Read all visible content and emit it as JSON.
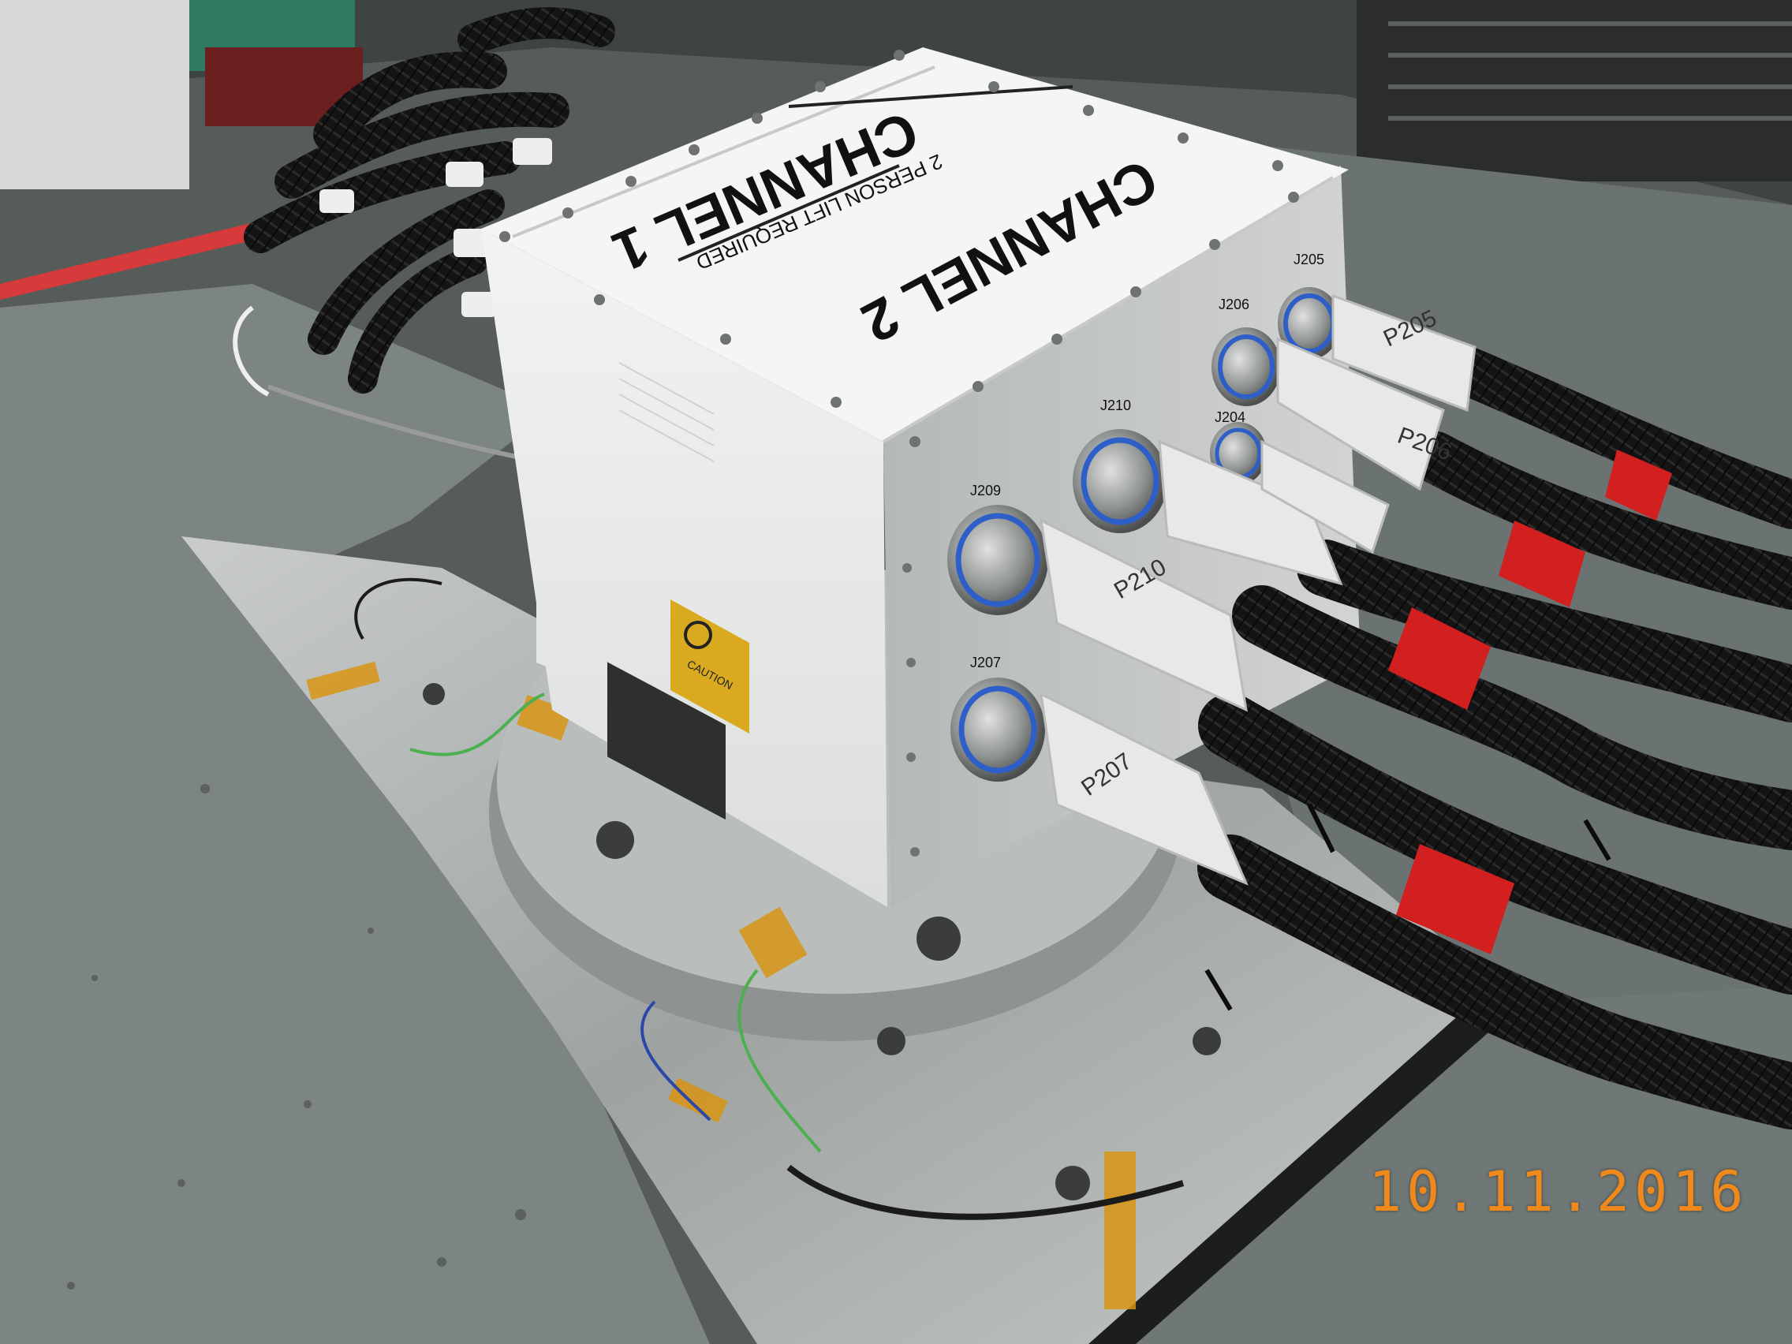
{
  "photo": {
    "date_stamp": "10.11.2016",
    "box": {
      "top_label_1": "CHANNEL 1",
      "top_label_2": "CHANNEL 2",
      "lift_notice": "2 PERSON LIFT REQUIRED",
      "caution": "CAUTION"
    },
    "connectors": [
      {
        "id": "J205"
      },
      {
        "id": "J206"
      },
      {
        "id": "J210"
      },
      {
        "id": "J204"
      },
      {
        "id": "J209"
      },
      {
        "id": "J207"
      }
    ],
    "plugs": [
      {
        "id": "P205"
      },
      {
        "id": "P206"
      },
      {
        "id": "P210"
      },
      {
        "id": "P207"
      }
    ],
    "colors": {
      "box_white": "#eef0ef",
      "floor_grey": "#7c8584",
      "cable_black": "#161616",
      "tape_red": "#d21f1f",
      "tape_white": "#e8e8e6",
      "tape_kapton": "#d99413",
      "stamp_orange": "#f0891b"
    }
  }
}
